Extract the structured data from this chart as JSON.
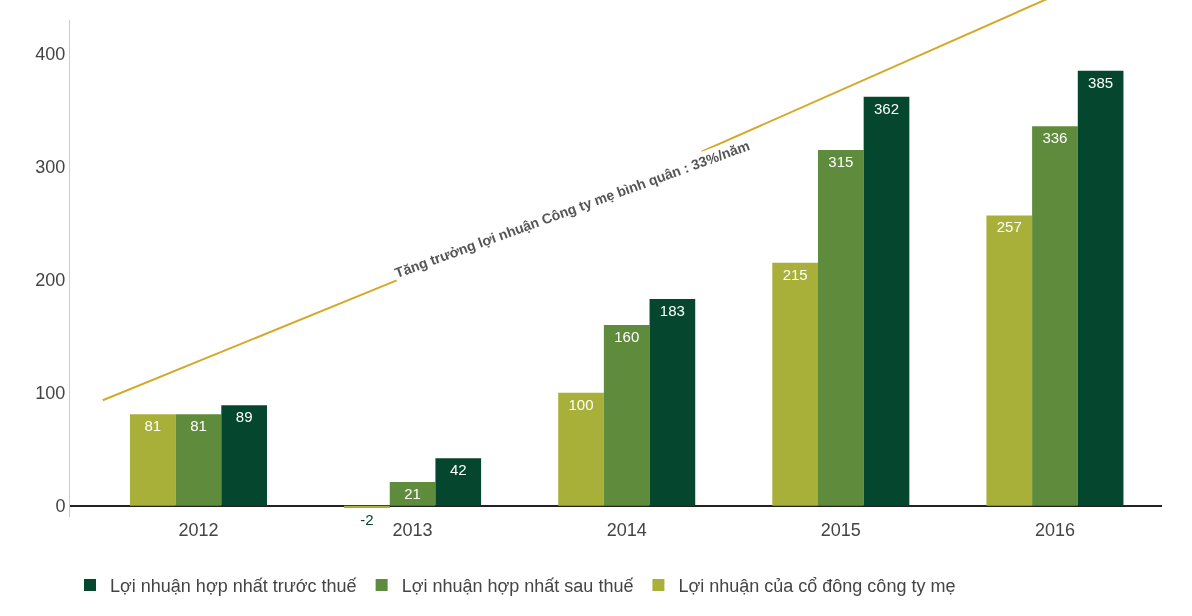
{
  "chart_data": {
    "type": "bar",
    "categories": [
      "2012",
      "2013",
      "2014",
      "2015",
      "2016"
    ],
    "series": [
      {
        "name": "Lợi nhuận của cổ đông công ty mẹ",
        "color": "#a8b03a",
        "values": [
          81,
          -2,
          100,
          215,
          257
        ]
      },
      {
        "name": "Lợi nhuận hợp nhất sau thuế",
        "color": "#5f8c3c",
        "values": [
          81,
          21,
          160,
          315,
          336
        ]
      },
      {
        "name": "Lợi nhuận hợp nhất trước thuế",
        "color": "#05472e",
        "values": [
          89,
          42,
          183,
          362,
          385
        ]
      }
    ],
    "ylim": [
      -10,
      430
    ],
    "yticks": [
      0,
      100,
      200,
      300,
      400
    ],
    "grid": false,
    "legend": "bottom",
    "data_labels": true,
    "annotations": [
      "Tăng trưởng lợi nhuận Công ty mẹ bình quân : 33%/năm"
    ]
  }
}
